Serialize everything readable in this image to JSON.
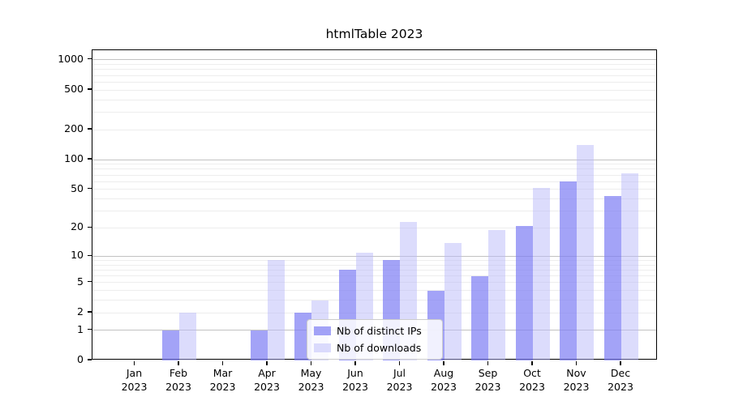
{
  "chart_data": {
    "type": "bar",
    "title": "htmlTable 2023",
    "xlabel": "",
    "ylabel": "",
    "yscale": "log1p",
    "ylim": [
      0,
      1250
    ],
    "grid": "on",
    "legend_position": "lower-center",
    "yticks": [
      0,
      1,
      2,
      5,
      10,
      20,
      50,
      100,
      200,
      500,
      1000
    ],
    "major_gridlines": [
      1,
      10,
      100,
      1000
    ],
    "minor_gridlines": [
      2,
      3,
      4,
      5,
      6,
      7,
      8,
      9,
      20,
      30,
      40,
      50,
      60,
      70,
      80,
      90,
      200,
      300,
      400,
      500,
      600,
      700,
      800,
      900
    ],
    "categories": [
      "Jan",
      "Feb",
      "Mar",
      "Apr",
      "May",
      "Jun",
      "Jul",
      "Aug",
      "Sep",
      "Oct",
      "Nov",
      "Dec"
    ],
    "year_label": "2023",
    "series": [
      {
        "name": "Nb of distinct IPs",
        "color": "rgba(124,124,243,0.70)",
        "color_hex": "#aaaaf4",
        "values": [
          0,
          1,
          0,
          1,
          2,
          7,
          9,
          4,
          6,
          21,
          60,
          43
        ]
      },
      {
        "name": "Nb of downloads",
        "color": "rgba(186,186,249,0.50)",
        "color_hex": "#dcdcf9",
        "values": [
          0,
          2,
          0,
          9,
          3,
          11,
          23,
          14,
          19,
          52,
          140,
          73
        ]
      }
    ]
  }
}
